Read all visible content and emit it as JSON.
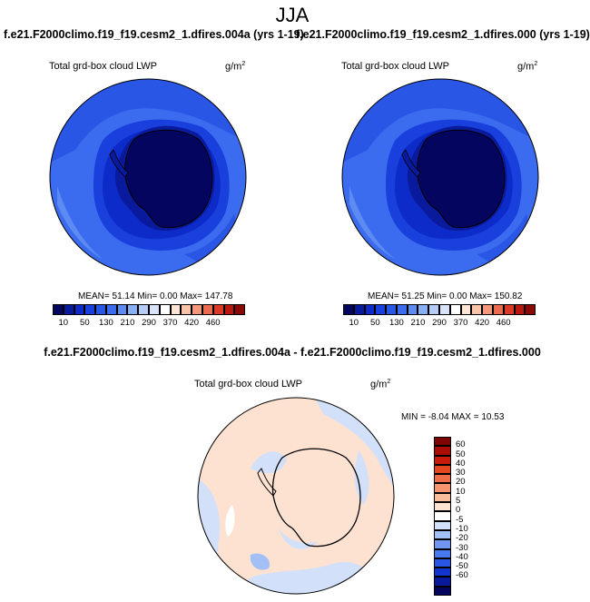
{
  "main_title": "JJA",
  "left_panel": {
    "case_title": "f.e21.F2000climo.f19_f19.cesm2_1.dfires.004a (yrs 1-19)",
    "var_label": "Total grd-box cloud LWP",
    "units_base": "g/m",
    "units_exp": "2",
    "stats": {
      "mean": "51.14",
      "min": "0.00",
      "max": "147.78",
      "text": "MEAN=  51.14  Min=   0.00  Max= 147.78"
    }
  },
  "right_panel": {
    "case_title": "f.e21.F2000climo.f19_f19.cesm2_1.dfires.000 (yrs 1-19)",
    "var_label": "Total grd-box cloud LWP",
    "units_base": "g/m",
    "units_exp": "2",
    "stats": {
      "mean": "51.25",
      "min": "0.00",
      "max": "150.82",
      "text": "MEAN=  51.25  Min=   0.00  Max= 150.82"
    }
  },
  "diff_panel": {
    "title": "f.e21.F2000climo.f19_f19.cesm2_1.dfires.004a - f.e21.F2000climo.f19_f19.cesm2_1.dfires.000",
    "var_label": "Total grd-box cloud LWP",
    "units_base": "g/m",
    "units_exp": "2",
    "stats": {
      "min": "-8.04",
      "max": "10.53",
      "text": "MIN = -8.04 MAX =  10.53"
    }
  },
  "colors": {
    "abs_scale": [
      "#04055e",
      "#0a1a9c",
      "#0d2bc8",
      "#1940dc",
      "#2a56e6",
      "#3b6cef",
      "#5d8bf2",
      "#8aaef4",
      "#b5ccf7",
      "#d9e4fa",
      "#ffffff",
      "#fde5d6",
      "#f9c4a8",
      "#f4977a",
      "#ec6a4e",
      "#da3a26",
      "#b91810",
      "#8c0a05"
    ],
    "diff_scale": [
      "#04055e",
      "#0a1a9c",
      "#1234cf",
      "#2a56e6",
      "#4879ee",
      "#7096f2",
      "#a2bff6",
      "#d2e0f9",
      "#ffffff",
      "#fde2d2",
      "#f9bd9c",
      "#f49570",
      "#ee6d47",
      "#e4461f",
      "#c91b0a",
      "#a90d04",
      "#7d0502"
    ]
  },
  "chart_data": [
    {
      "type": "heatmap",
      "title": "Total grd-box cloud LWP",
      "subtitle": "f.e21.F2000climo.f19_f19.cesm2_1.dfires.004a (yrs 1-19)",
      "units": "g/m2",
      "projection": "south polar stereographic",
      "colorbar_levels": [
        "10",
        "50",
        "130",
        "210",
        "290",
        "370",
        "420",
        "460"
      ],
      "mean": 51.14,
      "min": 0.0,
      "max": 147.78
    },
    {
      "type": "heatmap",
      "title": "Total grd-box cloud LWP",
      "subtitle": "f.e21.F2000climo.f19_f19.cesm2_1.dfires.000 (yrs 1-19)",
      "units": "g/m2",
      "projection": "south polar stereographic",
      "colorbar_levels": [
        "10",
        "50",
        "130",
        "210",
        "290",
        "370",
        "420",
        "460"
      ],
      "mean": 51.25,
      "min": 0.0,
      "max": 150.82
    },
    {
      "type": "heatmap",
      "title": "Total grd-box cloud LWP",
      "subtitle": "f.e21.F2000climo.f19_f19.cesm2_1.dfires.004a - f.e21.F2000climo.f19_f19.cesm2_1.dfires.000",
      "units": "g/m2",
      "projection": "south polar stereographic",
      "colorbar_levels": [
        "60",
        "50",
        "40",
        "30",
        "20",
        "10",
        "5",
        "0",
        "-5",
        "-10",
        "-20",
        "-30",
        "-40",
        "-50",
        "-60"
      ],
      "min": -8.04,
      "max": 10.53
    }
  ]
}
